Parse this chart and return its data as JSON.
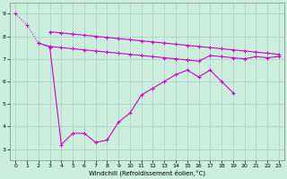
{
  "xlabel": "Windchill (Refroidissement éolien,°C)",
  "xlim": [
    -0.5,
    23.5
  ],
  "ylim": [
    2.5,
    9.5
  ],
  "yticks": [
    3,
    4,
    5,
    6,
    7,
    8,
    9
  ],
  "xticks": [
    0,
    1,
    2,
    3,
    4,
    5,
    6,
    7,
    8,
    9,
    10,
    11,
    12,
    13,
    14,
    15,
    16,
    17,
    18,
    19,
    20,
    21,
    22,
    23
  ],
  "bg_color": "#cceedd",
  "line_color": "#cc00cc",
  "grid_color": "#aacccc",
  "line1_x": [
    0,
    1,
    2,
    3
  ],
  "line1_y": [
    9.0,
    8.5,
    7.7,
    7.5
  ],
  "line2_x": [
    3,
    4,
    5,
    6,
    7,
    8,
    9,
    10,
    11,
    12,
    13,
    14,
    15,
    16,
    17,
    18,
    19
  ],
  "line2_y": [
    7.5,
    3.2,
    3.7,
    3.7,
    3.3,
    3.4,
    4.2,
    4.6,
    5.4,
    5.7,
    6.0,
    6.3,
    6.5,
    6.2,
    6.5,
    6.0,
    5.5
  ],
  "line3_x": [
    2,
    3,
    4,
    5,
    6,
    7,
    8,
    9,
    10,
    11,
    12,
    13,
    14,
    15,
    16,
    17,
    18,
    19,
    20,
    21,
    22,
    23
  ],
  "line3_y": [
    7.7,
    7.55,
    7.5,
    7.45,
    7.4,
    7.35,
    7.3,
    7.25,
    7.2,
    7.15,
    7.1,
    7.05,
    7.0,
    6.95,
    6.9,
    7.15,
    7.1,
    7.05,
    7.0,
    7.1,
    7.05,
    7.1
  ],
  "line4_x": [
    3,
    4,
    5,
    6,
    7,
    8,
    9,
    10,
    11,
    12,
    13,
    14,
    15,
    16,
    17,
    18,
    19,
    20,
    21,
    22,
    23
  ],
  "line4_y": [
    8.2,
    8.15,
    8.1,
    8.05,
    8.0,
    7.95,
    7.9,
    7.85,
    7.8,
    7.75,
    7.7,
    7.65,
    7.6,
    7.55,
    7.5,
    7.45,
    7.4,
    7.35,
    7.3,
    7.25,
    7.2
  ]
}
